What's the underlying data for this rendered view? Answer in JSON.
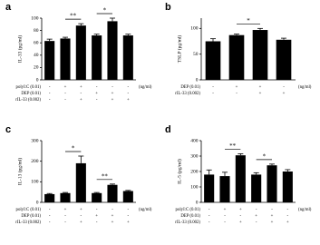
{
  "chart_data": [
    {
      "type": "bar",
      "label": "a",
      "ylabel": "IL-33 (pg/ml)",
      "color": "#000000",
      "values": [
        63,
        67,
        88,
        72,
        95,
        72
      ],
      "errors": [
        3,
        2,
        3,
        2,
        5,
        2
      ],
      "ylim": [
        0,
        100
      ],
      "yticks": [
        0,
        20,
        40,
        60,
        80,
        100
      ],
      "significance": [
        null,
        null,
        "**",
        null,
        "*",
        null
      ],
      "conditions": [
        {
          "label": "polyI:C (0.01)",
          "signs": [
            "-",
            "+",
            "+",
            "-",
            "-",
            "-"
          ]
        },
        {
          "label": "DEP (0.01)",
          "signs": [
            "-",
            "-",
            "-",
            "+",
            "+",
            "-"
          ]
        },
        {
          "label": "rIL-33 (0.002)",
          "signs": [
            "-",
            "-",
            "+",
            "-",
            "+",
            "+"
          ]
        }
      ],
      "unit": "(ng/ml)"
    },
    {
      "type": "bar",
      "label": "b",
      "ylabel": "TSLP (pg/ml)",
      "color": "#000000",
      "values": [
        75,
        87,
        97,
        78
      ],
      "errors": [
        5,
        2,
        3,
        3
      ],
      "ylim": [
        0,
        120
      ],
      "yticks": [
        0,
        50,
        100
      ],
      "significance": [
        null,
        null,
        "*",
        null
      ],
      "conditions": [
        {
          "label": "DEP (0.01)",
          "signs": [
            "-",
            "+",
            "+",
            "-"
          ]
        },
        {
          "label": "rIL-33 (0.002)",
          "signs": [
            "-",
            "-",
            "+",
            "+"
          ]
        }
      ],
      "unit": "(ng/ml)"
    },
    {
      "type": "bar",
      "label": "c",
      "ylabel": "IL-13 (pg/ml)",
      "color": "#000000",
      "values": [
        40,
        45,
        190,
        45,
        85,
        55
      ],
      "errors": [
        3,
        3,
        35,
        3,
        4,
        3
      ],
      "ylim": [
        0,
        300
      ],
      "yticks": [
        0,
        100,
        200,
        300
      ],
      "significance": [
        null,
        null,
        "*",
        null,
        "**",
        null
      ],
      "conditions": [
        {
          "label": "polyI:C (0.01)",
          "signs": [
            "-",
            "+",
            "+",
            "-",
            "-",
            "-"
          ]
        },
        {
          "label": "DEP (0.01)",
          "signs": [
            "-",
            "-",
            "-",
            "+",
            "+",
            "-"
          ]
        },
        {
          "label": "rIL-33 (0.002)",
          "signs": [
            "-",
            "-",
            "+",
            "-",
            "+",
            "+"
          ]
        }
      ],
      "unit": "(ng/ml)"
    },
    {
      "type": "bar",
      "label": "d",
      "ylabel": "IL-5 (pg/ml)",
      "color": "#000000",
      "values": [
        180,
        170,
        305,
        180,
        240,
        200
      ],
      "errors": [
        30,
        25,
        10,
        12,
        8,
        12
      ],
      "ylim": [
        0,
        400
      ],
      "yticks": [
        0,
        100,
        200,
        300,
        400
      ],
      "significance": [
        null,
        null,
        "**",
        null,
        "*",
        null
      ],
      "conditions": [
        {
          "label": "polyI:C (0.01)",
          "signs": [
            "-",
            "+",
            "+",
            "-",
            "-",
            "-"
          ]
        },
        {
          "label": "DEP (0.01)",
          "signs": [
            "-",
            "-",
            "-",
            "+",
            "+",
            "-"
          ]
        },
        {
          "label": "rIL-33 (0.002)",
          "signs": [
            "-",
            "-",
            "+",
            "-",
            "+",
            "+"
          ]
        }
      ],
      "unit": "(ng/ml)"
    }
  ]
}
